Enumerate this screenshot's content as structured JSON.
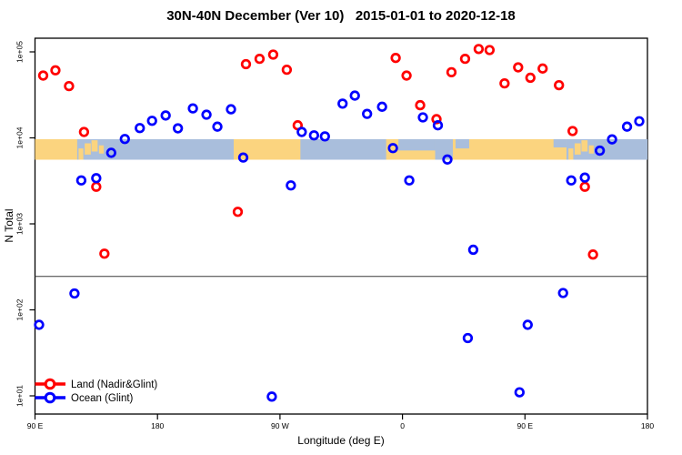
{
  "chart_data": {
    "type": "scatter",
    "title": "30N-40N December (Ver 10)   2015-01-01 to 2020-12-18",
    "x_axis": {
      "label": "Longitude (deg E)",
      "range_deg_extended": [
        90,
        540
      ],
      "ticks": [
        {
          "lon": 90,
          "label": "90 E"
        },
        {
          "lon": 180,
          "label": "180"
        },
        {
          "lon": 270,
          "label": "90 W"
        },
        {
          "lon": 360,
          "label": "0"
        },
        {
          "lon": 450,
          "label": "90 E"
        },
        {
          "lon": 540,
          "label": "180"
        }
      ]
    },
    "y_axis": {
      "label": "N Total",
      "scale": "log",
      "ticks": [
        {
          "value": 10,
          "label": "1e+01"
        },
        {
          "value": 100,
          "label": "1e+02"
        },
        {
          "value": 1000,
          "label": "1e+03"
        },
        {
          "value": 10000,
          "label": "1e+04"
        },
        {
          "value": 100000,
          "label": "1e+05"
        }
      ]
    },
    "threshold_line": {
      "value": 245,
      "color": "#3a3a3a"
    },
    "legend": {
      "position": "bottom-left",
      "items": [
        {
          "label": "Land (Nadir&Glint)",
          "color": "#ff0000"
        },
        {
          "label": "Ocean (Glint)",
          "color": "#0000ff"
        }
      ]
    },
    "series": [
      {
        "name": "Land (Nadir&Glint)",
        "color": "#ff0000",
        "marker": "open-circle",
        "points": [
          [
            96,
            53000
          ],
          [
            105,
            61000
          ],
          [
            115,
            40000
          ],
          [
            126,
            11700
          ],
          [
            135,
            2700
          ],
          [
            141,
            450
          ],
          [
            239,
            1380
          ],
          [
            245,
            72000
          ],
          [
            255,
            83000
          ],
          [
            265,
            93000
          ],
          [
            275,
            62000
          ],
          [
            283,
            14000
          ],
          [
            355,
            85000
          ],
          [
            363,
            53000
          ],
          [
            373,
            24000
          ],
          [
            385,
            16500
          ],
          [
            396,
            58000
          ],
          [
            406,
            83000
          ],
          [
            416,
            108000
          ],
          [
            424,
            105000
          ],
          [
            435,
            43000
          ],
          [
            445,
            66000
          ],
          [
            454,
            50000
          ],
          [
            463,
            64000
          ],
          [
            475,
            41000
          ],
          [
            485,
            12000
          ],
          [
            494,
            2700
          ],
          [
            500,
            440
          ]
        ]
      },
      {
        "name": "Ocean (Glint)",
        "color": "#0000ff",
        "marker": "open-circle",
        "points": [
          [
            93,
            67
          ],
          [
            119,
            155
          ],
          [
            124,
            3200
          ],
          [
            135,
            3400
          ],
          [
            146,
            6700
          ],
          [
            156,
            9700
          ],
          [
            167,
            13000
          ],
          [
            176,
            15800
          ],
          [
            186,
            18200
          ],
          [
            195,
            12900
          ],
          [
            206,
            22000
          ],
          [
            216,
            18600
          ],
          [
            224,
            13500
          ],
          [
            234,
            21500
          ],
          [
            243,
            5900
          ],
          [
            264,
            9.8
          ],
          [
            278,
            2800
          ],
          [
            286,
            11700
          ],
          [
            295,
            10700
          ],
          [
            303,
            10400
          ],
          [
            316,
            25000
          ],
          [
            325,
            31000
          ],
          [
            334,
            19000
          ],
          [
            345,
            23000
          ],
          [
            353,
            7600
          ],
          [
            365,
            3200
          ],
          [
            375,
            17300
          ],
          [
            386,
            14000
          ],
          [
            393,
            5600
          ],
          [
            408,
            47
          ],
          [
            412,
            500
          ],
          [
            446,
            11
          ],
          [
            452,
            67
          ],
          [
            478,
            157
          ],
          [
            484,
            3200
          ],
          [
            494,
            3450
          ],
          [
            505,
            7100
          ],
          [
            514,
            9600
          ],
          [
            525,
            13500
          ],
          [
            534,
            15600
          ]
        ]
      }
    ],
    "map_band": {
      "description": "30N-40N world map strip drawn across the 1e+04 level",
      "ocean_color": "#a9bedc",
      "land_color": "#fbd47f",
      "land_segments": [
        {
          "lon": [
            90,
            121
          ],
          "y": [
            0,
            1
          ]
        },
        {
          "lon": [
            122,
            125.5
          ],
          "y": [
            0.45,
            1
          ]
        },
        {
          "lon": [
            126.5,
            131
          ],
          "y": [
            0.2,
            0.75
          ]
        },
        {
          "lon": [
            131.5,
            136
          ],
          "y": [
            0.05,
            0.6
          ]
        },
        {
          "lon": [
            137,
            140.5
          ],
          "y": [
            0.3,
            0.7
          ]
        },
        {
          "lon": [
            236,
            285
          ],
          "y": [
            0,
            1
          ]
        },
        {
          "lon": [
            348,
            384
          ],
          "y": [
            0,
            1
          ]
        },
        {
          "lon": [
            397,
            480.5
          ],
          "y": [
            0,
            1
          ]
        },
        {
          "lon": [
            482,
            485.5
          ],
          "y": [
            0.45,
            1
          ]
        },
        {
          "lon": [
            486.5,
            491
          ],
          "y": [
            0.2,
            0.75
          ]
        },
        {
          "lon": [
            491.5,
            496
          ],
          "y": [
            0.05,
            0.6
          ]
        },
        {
          "lon": [
            497,
            500.5
          ],
          "y": [
            0.3,
            0.7
          ]
        }
      ],
      "sea_overlays": [
        {
          "lon": [
            357,
            384
          ],
          "y": [
            0,
            0.55
          ]
        },
        {
          "lon": [
            399,
            409
          ],
          "y": [
            0,
            0.45
          ]
        },
        {
          "lon": [
            471,
            480.5
          ],
          "y": [
            0,
            0.4
          ]
        }
      ]
    }
  }
}
